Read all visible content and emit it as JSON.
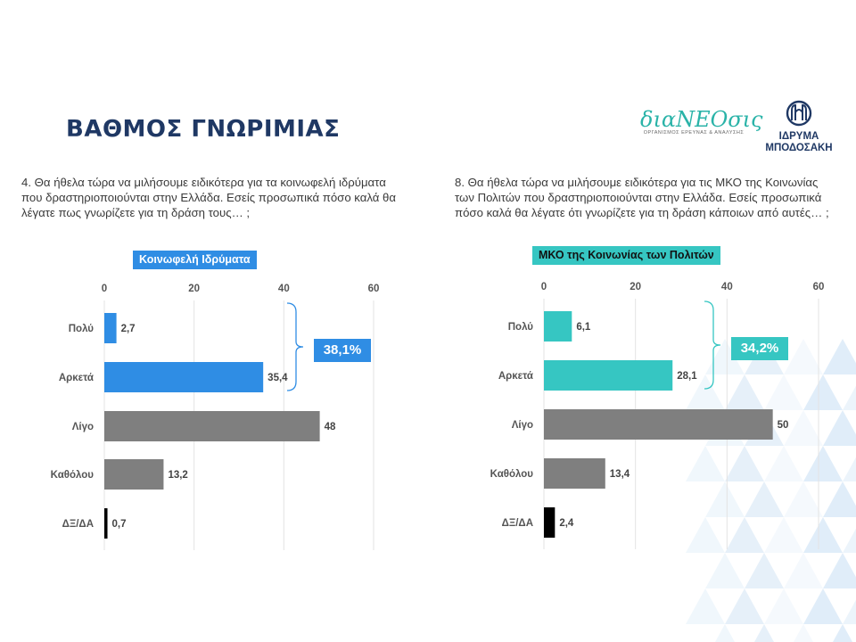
{
  "title": "ΒΑΘΜΟΣ ΓΝΩΡΙΜΙΑΣ",
  "logos": {
    "dianeosis": "διαΝΕΟσις",
    "dianeosis_sub": "ΟΡΓΑΝΙΣΜΟΣ ΕΡΕΥΝΑΣ & ΑΝΑΛΥΣΗΣ",
    "bodossaki_line1": "ΙΔΡΥΜΑ",
    "bodossaki_line2": "ΜΠΟΔΟΣΑΚΗ"
  },
  "questions": {
    "left": "4. Θα ήθελα τώρα να μιλήσουμε ειδικότερα για τα κοινωφελή ιδρύματα που δραστηριοποιούνται στην Ελλάδα. Εσείς προσωπικά πόσο καλά θα λέγατε πως γνωρίζετε για τη δράση τους… ;",
    "right": "8. Θα ήθελα τώρα να μιλήσουμε ειδικότερα για τις ΜΚΟ της Κοινωνίας των Πολιτών που δραστηριοποιούνται στην Ελλάδα. Εσείς προσωπικά πόσο καλά θα λέγατε ότι γνωρίζετε για τη δράση κάποιων από αυτές… ;"
  },
  "colors": {
    "blue": "#2f8de4",
    "teal": "#36c6c2",
    "gray": "#7f7f7f",
    "black": "#000000",
    "title": "#1f3864"
  },
  "chart_data": [
    {
      "type": "bar",
      "orientation": "horizontal",
      "title": "Κοινωφελή Ιδρύματα",
      "categories": [
        "Πολύ",
        "Αρκετά",
        "Λίγο",
        "Καθόλου",
        "ΔΞ/ΔΑ"
      ],
      "values": [
        2.7,
        35.4,
        48,
        13.2,
        0.7
      ],
      "value_labels": [
        "2,7",
        "35,4",
        "48",
        "13,2",
        "0,7"
      ],
      "bar_colors": [
        "#2f8de4",
        "#2f8de4",
        "#7f7f7f",
        "#7f7f7f",
        "#000000"
      ],
      "xlim": [
        0,
        60
      ],
      "xticks": [
        0,
        20,
        40,
        60
      ],
      "grid": true,
      "annotation": "38,1%"
    },
    {
      "type": "bar",
      "orientation": "horizontal",
      "title": "ΜΚΟ της Κοινωνίας των Πολιτών",
      "categories": [
        "Πολύ",
        "Αρκετά",
        "Λίγο",
        "Καθόλου",
        "ΔΞ/ΔΑ"
      ],
      "values": [
        6.1,
        28.1,
        50,
        13.4,
        2.4
      ],
      "value_labels": [
        "6,1",
        "28,1",
        "50",
        "13,4",
        "2,4"
      ],
      "bar_colors": [
        "#36c6c2",
        "#36c6c2",
        "#7f7f7f",
        "#7f7f7f",
        "#000000"
      ],
      "xlim": [
        0,
        60
      ],
      "xticks": [
        0,
        20,
        40,
        60
      ],
      "grid": true,
      "annotation": "34,2%"
    }
  ]
}
